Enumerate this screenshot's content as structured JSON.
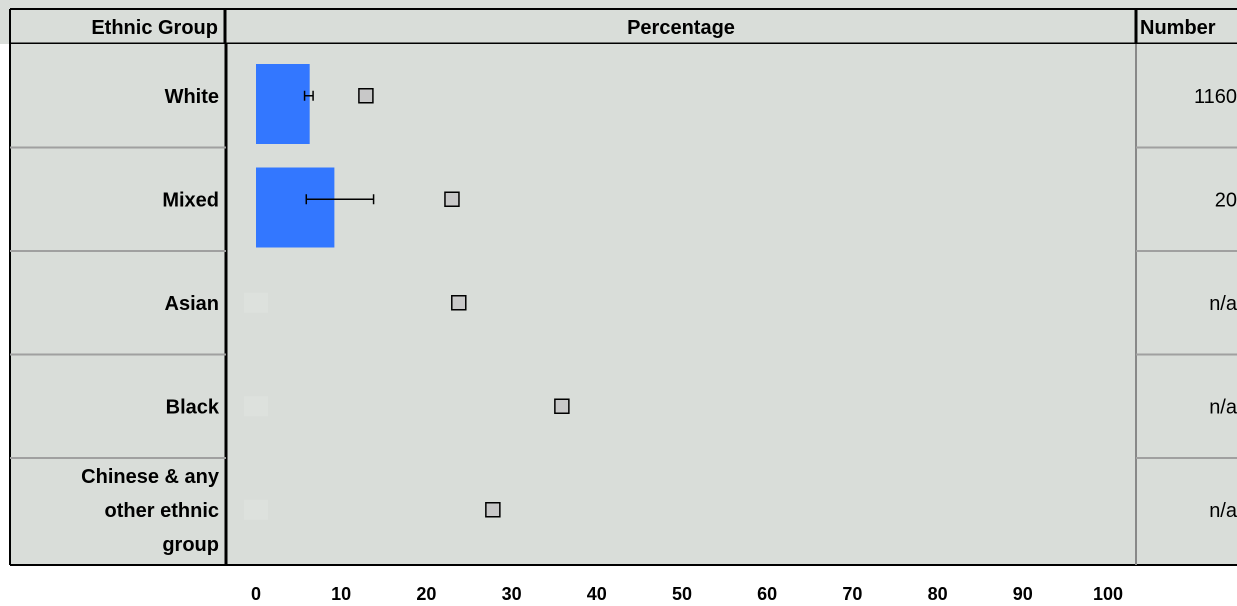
{
  "headers": {
    "ethnic_group": "Ethnic Group",
    "percentage": "Percentage",
    "number": "Number"
  },
  "colors": {
    "panel_bg": "#d9ddd9",
    "bar": "#3377ff",
    "marker_fill": "#c8c8c8",
    "row_divider": "#a0a0a0"
  },
  "chart_data": {
    "type": "bar",
    "orientation": "horizontal",
    "categories": [
      "White",
      "Mixed",
      "Asian",
      "Black",
      "Chinese & any other ethnic group"
    ],
    "category_lines": [
      [
        "White"
      ],
      [
        "Mixed"
      ],
      [
        "Asian"
      ],
      [
        "Black"
      ],
      [
        "Chinese & any",
        "other ethnic",
        "group"
      ]
    ],
    "series": [
      {
        "type": "bar",
        "values": [
          6.3,
          9.2,
          null,
          null,
          null
        ],
        "error_low": [
          5.7,
          5.9,
          null,
          null,
          null
        ],
        "error_high": [
          6.7,
          13.8,
          null,
          null,
          null
        ]
      },
      {
        "type": "marker",
        "values": [
          12.9,
          23.0,
          23.8,
          35.9,
          27.8
        ]
      }
    ],
    "numbers": [
      "1160",
      "20",
      "n/a",
      "n/a",
      "n/a"
    ],
    "x_ticks": [
      0,
      10,
      20,
      30,
      40,
      50,
      60,
      70,
      80,
      90,
      100
    ],
    "xlim": [
      0,
      102
    ],
    "grid": false
  }
}
